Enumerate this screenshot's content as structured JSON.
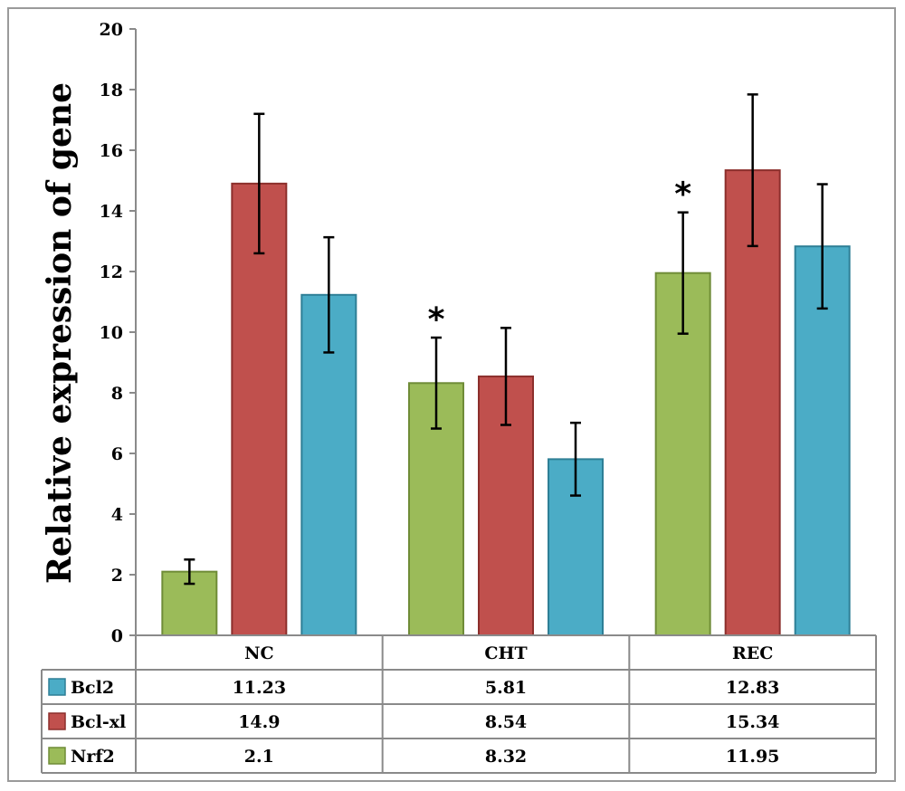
{
  "chart_data": {
    "type": "bar",
    "title": "",
    "xlabel": "",
    "ylabel": "Relative expression of gene",
    "ylim": [
      0,
      20
    ],
    "yticks": [
      "0",
      "2",
      "4",
      "6",
      "8",
      "10",
      "12",
      "14",
      "16",
      "18",
      "20"
    ],
    "ytick_values": [
      0,
      2,
      4,
      6,
      8,
      10,
      12,
      14,
      16,
      18,
      20
    ],
    "grid": false,
    "legend": "data-table",
    "categories": [
      "NC",
      "CHT",
      "REC"
    ],
    "bar_series_order": [
      "Nrf2",
      "Bcl-xl",
      "Bcl2"
    ],
    "series": [
      {
        "name": "Bcl2",
        "color": "#4bacc6",
        "edge": "#2e7f96",
        "values": [
          11.23,
          5.81,
          12.83
        ],
        "labels": [
          "11.23",
          "5.81",
          "12.83"
        ],
        "errors": [
          1.9,
          1.2,
          2.05
        ]
      },
      {
        "name": "Bcl-xl",
        "color": "#c0504d",
        "edge": "#8c2f2c",
        "values": [
          14.9,
          8.54,
          15.34
        ],
        "labels": [
          "14.9",
          "8.54",
          "15.34"
        ],
        "errors": [
          2.3,
          1.6,
          2.5
        ]
      },
      {
        "name": "Nrf2",
        "color": "#9bbb59",
        "edge": "#6f8c37",
        "values": [
          2.1,
          8.32,
          11.95
        ],
        "labels": [
          "2.1",
          "8.32",
          "11.95"
        ],
        "errors": [
          0.4,
          1.5,
          2.0
        ]
      }
    ],
    "annotations": [
      {
        "text": "*",
        "series": "Nrf2",
        "category": "CHT"
      },
      {
        "text": "*",
        "series": "Nrf2",
        "category": "REC"
      }
    ]
  }
}
